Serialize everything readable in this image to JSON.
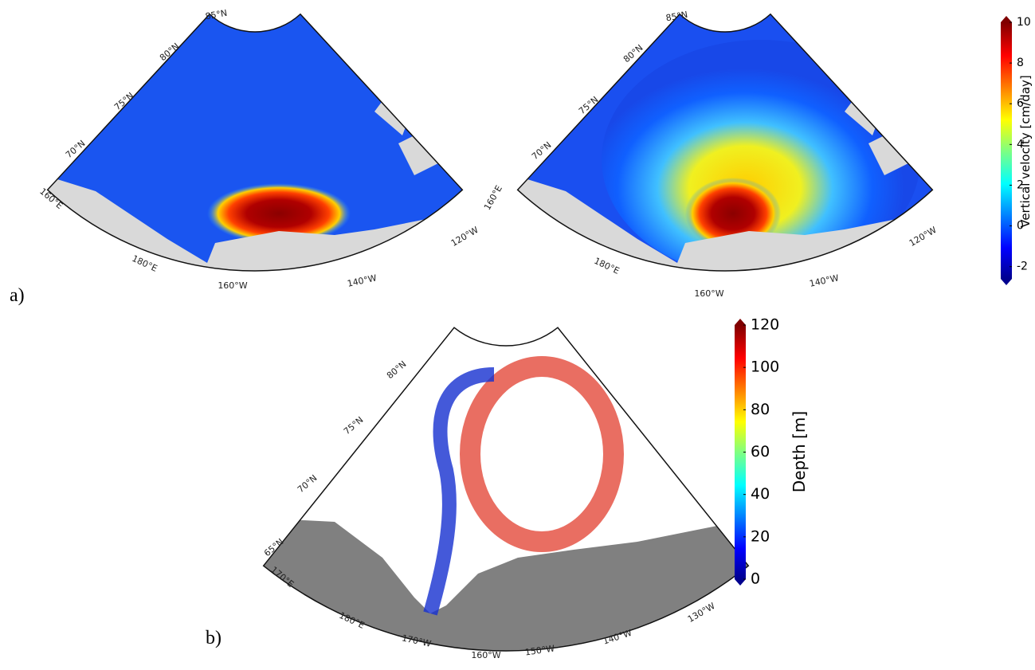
{
  "panel_a": {
    "label": "a)",
    "left_map": {
      "graticule_labels": [
        "85°N",
        "80°N",
        "75°N",
        "70°N",
        "160°E",
        "180°E",
        "160°W",
        "140°W",
        "120°W"
      ]
    },
    "right_map": {
      "graticule_labels": [
        "85°N",
        "80°N",
        "75°N",
        "70°N",
        "160°E",
        "180°E",
        "160°W",
        "140°W",
        "120°W"
      ]
    },
    "colorbar": {
      "label": "Vertical velocity [cm/day]",
      "lim": [
        -2.6,
        10
      ],
      "ticks": [
        -2,
        0,
        2,
        4,
        6,
        8,
        10
      ]
    }
  },
  "panel_b": {
    "label": "b)",
    "map": {
      "graticule_labels": [
        "80°N",
        "75°N",
        "70°N",
        "65°N",
        "170°E",
        "180°E",
        "170°W",
        "160°W",
        "150°W",
        "140°W",
        "130°W"
      ]
    },
    "colorbar": {
      "label": "Depth [m]",
      "lim": [
        0,
        120
      ],
      "ticks": [
        0,
        20,
        40,
        60,
        80,
        100,
        120
      ]
    }
  }
}
